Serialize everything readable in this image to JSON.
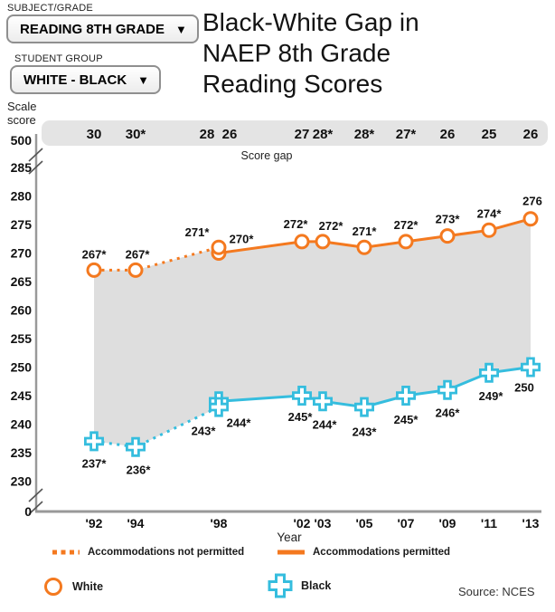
{
  "controls": {
    "subject_label": "SUBJECT/GRADE",
    "subject_value": "READING 8TH GRADE",
    "group_label": "STUDENT GROUP",
    "group_value": "WHITE - BLACK",
    "caret": "▼"
  },
  "title": {
    "lines": [
      "Black-White Gap in",
      "NAEP 8th Grade",
      "Reading Scores"
    ]
  },
  "chart_data": {
    "type": "line",
    "title": "Black-White Gap in NAEP 8th Grade Reading Scores",
    "xlabel": "Year",
    "ylabel": "Scale score",
    "axis_color": "#999999",
    "band_color": "#E4E4E4",
    "gap_fill_color": "#DEDEDE",
    "y_axis": {
      "display_top": "500",
      "display_bottom": "0",
      "tick_max": 285,
      "tick_min": 230,
      "tick_step": 5,
      "has_breaks": true
    },
    "x_ticks": [
      {
        "year": 1992,
        "label": "'92"
      },
      {
        "year": 1994,
        "label": "'94"
      },
      {
        "year": 1998,
        "label": "'98"
      },
      {
        "year": 2002,
        "label": "'02"
      },
      {
        "year": 2003,
        "label": "'03"
      },
      {
        "year": 2005,
        "label": "'05"
      },
      {
        "year": 2007,
        "label": "'07"
      },
      {
        "year": 2009,
        "label": "'09"
      },
      {
        "year": 2011,
        "label": "'11"
      },
      {
        "year": 2013,
        "label": "'13"
      }
    ],
    "score_gap": {
      "label": "Score gap",
      "values": [
        {
          "year": 1992,
          "text": "30",
          "dx": 0
        },
        {
          "year": 1994,
          "text": "30*",
          "dx": 0
        },
        {
          "year": 1998,
          "text": "28",
          "dx": -13
        },
        {
          "year": 1998,
          "text": "26",
          "dx": 12
        },
        {
          "year": 2002,
          "text": "27",
          "dx": 0
        },
        {
          "year": 2003,
          "text": "28*",
          "dx": 0
        },
        {
          "year": 2005,
          "text": "28*",
          "dx": 0
        },
        {
          "year": 2007,
          "text": "27*",
          "dx": 0
        },
        {
          "year": 2009,
          "text": "26",
          "dx": 0
        },
        {
          "year": 2011,
          "text": "25",
          "dx": 0
        },
        {
          "year": 2013,
          "text": "26",
          "dx": 0
        }
      ]
    },
    "segment_legend": {
      "np": "Accommodations not permitted",
      "p": "Accommodations permitted"
    },
    "series": [
      {
        "name": "White",
        "color": "#F4791F",
        "marker": "circle",
        "points": [
          {
            "year": 1992,
            "value": 267,
            "label": "267*",
            "seg": "np",
            "ldx": 0,
            "ldy": -13
          },
          {
            "year": 1994,
            "value": 267,
            "label": "267*",
            "seg": "np",
            "ldx": 2,
            "ldy": -13
          },
          {
            "year": 1998,
            "value": 271,
            "label": "271*",
            "seg": "np",
            "ldx": -24,
            "ldy": -12
          },
          {
            "year": 1998,
            "value": 270,
            "label": "270*",
            "seg": "p",
            "ldx": 25,
            "ldy": -11
          },
          {
            "year": 2002,
            "value": 272,
            "label": "272*",
            "seg": "p",
            "ldx": -7,
            "ldy": -15
          },
          {
            "year": 2003,
            "value": 272,
            "label": "272*",
            "seg": "p",
            "ldx": 9,
            "ldy": -13
          },
          {
            "year": 2005,
            "value": 271,
            "label": "271*",
            "seg": "p",
            "ldx": 0,
            "ldy": -13
          },
          {
            "year": 2007,
            "value": 272,
            "label": "272*",
            "seg": "p",
            "ldx": 0,
            "ldy": -14
          },
          {
            "year": 2009,
            "value": 273,
            "label": "273*",
            "seg": "p",
            "ldx": 0,
            "ldy": -14
          },
          {
            "year": 2011,
            "value": 274,
            "label": "274*",
            "seg": "p",
            "ldx": 0,
            "ldy": -14
          },
          {
            "year": 2013,
            "value": 276,
            "label": "276",
            "seg": "p",
            "ldx": 2,
            "ldy": -15
          }
        ]
      },
      {
        "name": "Black",
        "color": "#35BDDE",
        "marker": "plus",
        "points": [
          {
            "year": 1992,
            "value": 237,
            "label": "237*",
            "seg": "np",
            "ldx": 0,
            "ldy": 29
          },
          {
            "year": 1994,
            "value": 236,
            "label": "236*",
            "seg": "np",
            "ldx": 3,
            "ldy": 30
          },
          {
            "year": 1998,
            "value": 243,
            "label": "243*",
            "seg": "np",
            "ldx": -17,
            "ldy": 31
          },
          {
            "year": 1998,
            "value": 244,
            "label": "244*",
            "seg": "p",
            "ldx": 22,
            "ldy": 28
          },
          {
            "year": 2002,
            "value": 245,
            "label": "245*",
            "seg": "p",
            "ldx": -2,
            "ldy": 28
          },
          {
            "year": 2003,
            "value": 244,
            "label": "244*",
            "seg": "p",
            "ldx": 2,
            "ldy": 30
          },
          {
            "year": 2005,
            "value": 243,
            "label": "243*",
            "seg": "p",
            "ldx": 0,
            "ldy": 32
          },
          {
            "year": 2007,
            "value": 245,
            "label": "245*",
            "seg": "p",
            "ldx": 0,
            "ldy": 31
          },
          {
            "year": 2009,
            "value": 246,
            "label": "246*",
            "seg": "p",
            "ldx": 0,
            "ldy": 30
          },
          {
            "year": 2011,
            "value": 249,
            "label": "249*",
            "seg": "p",
            "ldx": 2,
            "ldy": 30
          },
          {
            "year": 2013,
            "value": 250,
            "label": "250",
            "seg": "p",
            "ldx": -7,
            "ldy": 27
          }
        ]
      }
    ]
  },
  "source": "Source: NCES"
}
